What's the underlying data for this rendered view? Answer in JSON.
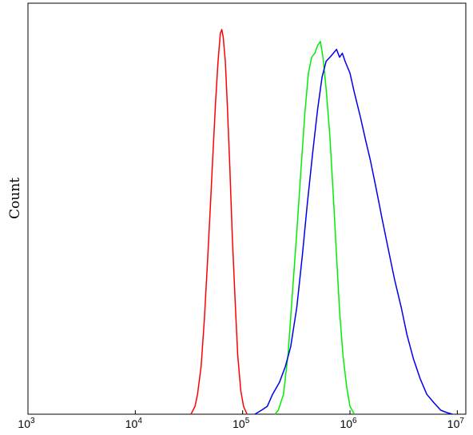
{
  "chart_data": {
    "type": "line",
    "title": "",
    "xlabel": "",
    "ylabel": "Count",
    "xscale": "log",
    "xlim": [
      1000,
      12000000
    ],
    "ylim": [
      0,
      1.0
    ],
    "grid": false,
    "legend": "none",
    "x_ticks": [
      {
        "value": 1000,
        "base": "10",
        "exp": "3"
      },
      {
        "value": 10000,
        "base": "10",
        "exp": "4"
      },
      {
        "value": 100000,
        "base": "10",
        "exp": "5"
      },
      {
        "value": 1000000,
        "base": "10",
        "exp": "6"
      },
      {
        "value": 10000000,
        "base": "10",
        "exp": "7"
      }
    ],
    "series": [
      {
        "color": "#ff0000",
        "points": [
          [
            33000,
            0
          ],
          [
            36000,
            0.02
          ],
          [
            38000,
            0.05
          ],
          [
            41000,
            0.12
          ],
          [
            44000,
            0.24
          ],
          [
            47000,
            0.38
          ],
          [
            50000,
            0.52
          ],
          [
            53000,
            0.66
          ],
          [
            56000,
            0.79
          ],
          [
            59000,
            0.89
          ],
          [
            62000,
            0.96
          ],
          [
            64000,
            0.97
          ],
          [
            66000,
            0.95
          ],
          [
            69000,
            0.89
          ],
          [
            72000,
            0.78
          ],
          [
            76000,
            0.62
          ],
          [
            80000,
            0.45
          ],
          [
            85000,
            0.29
          ],
          [
            90000,
            0.15
          ],
          [
            96000,
            0.06
          ],
          [
            102000,
            0.02
          ],
          [
            110000,
            0
          ]
        ]
      },
      {
        "color": "#00ee00",
        "points": [
          [
            200000,
            0
          ],
          [
            215000,
            0.01
          ],
          [
            240000,
            0.05
          ],
          [
            265000,
            0.15
          ],
          [
            290000,
            0.3
          ],
          [
            320000,
            0.46
          ],
          [
            350000,
            0.62
          ],
          [
            380000,
            0.76
          ],
          [
            410000,
            0.86
          ],
          [
            440000,
            0.9
          ],
          [
            470000,
            0.91
          ],
          [
            500000,
            0.93
          ],
          [
            530000,
            0.94
          ],
          [
            560000,
            0.9
          ],
          [
            600000,
            0.82
          ],
          [
            650000,
            0.7
          ],
          [
            700000,
            0.55
          ],
          [
            750000,
            0.4
          ],
          [
            800000,
            0.26
          ],
          [
            860000,
            0.15
          ],
          [
            930000,
            0.07
          ],
          [
            1000000,
            0.02
          ],
          [
            1100000,
            0
          ]
        ]
      },
      {
        "color": "#0000ee",
        "points": [
          [
            130000,
            0
          ],
          [
            150000,
            0.01
          ],
          [
            170000,
            0.02
          ],
          [
            190000,
            0.05
          ],
          [
            220000,
            0.08
          ],
          [
            250000,
            0.12
          ],
          [
            280000,
            0.17
          ],
          [
            320000,
            0.27
          ],
          [
            360000,
            0.4
          ],
          [
            400000,
            0.53
          ],
          [
            450000,
            0.66
          ],
          [
            500000,
            0.77
          ],
          [
            550000,
            0.85
          ],
          [
            600000,
            0.89
          ],
          [
            650000,
            0.9
          ],
          [
            700000,
            0.91
          ],
          [
            750000,
            0.92
          ],
          [
            800000,
            0.9
          ],
          [
            850000,
            0.91
          ],
          [
            900000,
            0.89
          ],
          [
            1000000,
            0.86
          ],
          [
            1100000,
            0.81
          ],
          [
            1250000,
            0.75
          ],
          [
            1400000,
            0.69
          ],
          [
            1550000,
            0.64
          ],
          [
            1750000,
            0.57
          ],
          [
            2000000,
            0.49
          ],
          [
            2300000,
            0.41
          ],
          [
            2600000,
            0.34
          ],
          [
            3000000,
            0.27
          ],
          [
            3400000,
            0.2
          ],
          [
            3900000,
            0.14
          ],
          [
            4500000,
            0.09
          ],
          [
            5200000,
            0.05
          ],
          [
            6000000,
            0.03
          ],
          [
            7000000,
            0.01
          ],
          [
            8000000,
            0.004
          ],
          [
            9000000,
            0
          ]
        ]
      }
    ]
  }
}
